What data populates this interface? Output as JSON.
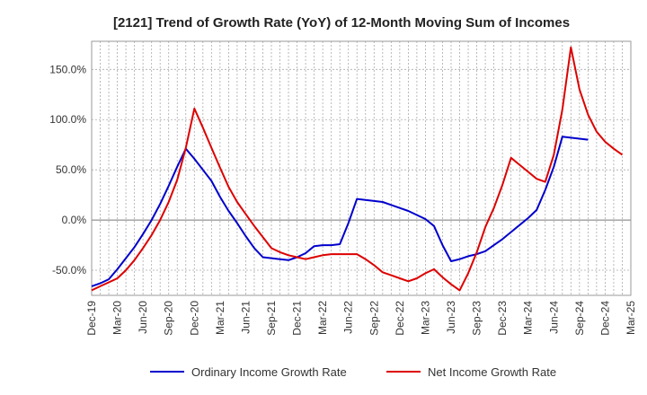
{
  "chart_data": {
    "type": "line",
    "title": "[2121]  Trend of Growth Rate (YoY) of 12-Month Moving Sum of Incomes",
    "xlabel": "",
    "ylabel": "",
    "x_tick_labels": [
      "Dec-19",
      "Mar-20",
      "Jun-20",
      "Sep-20",
      "Dec-20",
      "Mar-21",
      "Jun-21",
      "Sep-21",
      "Dec-21",
      "Mar-22",
      "Jun-22",
      "Sep-22",
      "Dec-22",
      "Mar-23",
      "Jun-23",
      "Sep-23",
      "Dec-23",
      "Mar-24",
      "Jun-24",
      "Sep-24",
      "Dec-24",
      "Mar-25"
    ],
    "y_ticks": [
      150,
      100,
      50,
      0,
      -50
    ],
    "y_tick_labels": [
      "150.0%",
      "100.0%",
      "50.0%",
      "0.0%",
      "-50.0%"
    ],
    "ylim": [
      -75,
      178
    ],
    "grid": true,
    "legend_position": "bottom",
    "series": [
      {
        "name": "Ordinary Income Growth Rate",
        "color": "#0000cc",
        "values": [
          -66,
          -63,
          -59,
          -49,
          -38,
          -27,
          -14,
          0,
          16,
          34,
          53,
          71,
          61,
          50,
          39,
          23,
          9,
          -3,
          -16,
          -28,
          -37,
          -38,
          -39,
          -40,
          -37,
          -33,
          -26,
          -25,
          -25,
          -24,
          -3,
          21,
          20,
          19,
          18,
          15,
          12,
          9,
          5,
          1,
          -6,
          -25,
          -41,
          -39,
          -36,
          -34,
          -31,
          -25,
          -19,
          -12,
          -5,
          2,
          10,
          30,
          53,
          83,
          82,
          81,
          80
        ]
      },
      {
        "name": "Net Income Growth Rate",
        "color": "#dd0000",
        "values": [
          -70,
          -66,
          -62,
          -58,
          -50,
          -40,
          -28,
          -15,
          0,
          18,
          40,
          72,
          111,
          92,
          72,
          52,
          33,
          18,
          6,
          -6,
          -17,
          -28,
          -32,
          -35,
          -37,
          -39,
          -37,
          -35,
          -34,
          -34,
          -34,
          -34,
          -39,
          -45,
          -52,
          -55,
          -58,
          -61,
          -58,
          -53,
          -49,
          -57,
          -64,
          -70,
          -53,
          -32,
          -7,
          12,
          35,
          62,
          55,
          48,
          41,
          38,
          65,
          110,
          172,
          130,
          105,
          88,
          78,
          71,
          65
        ]
      }
    ]
  }
}
